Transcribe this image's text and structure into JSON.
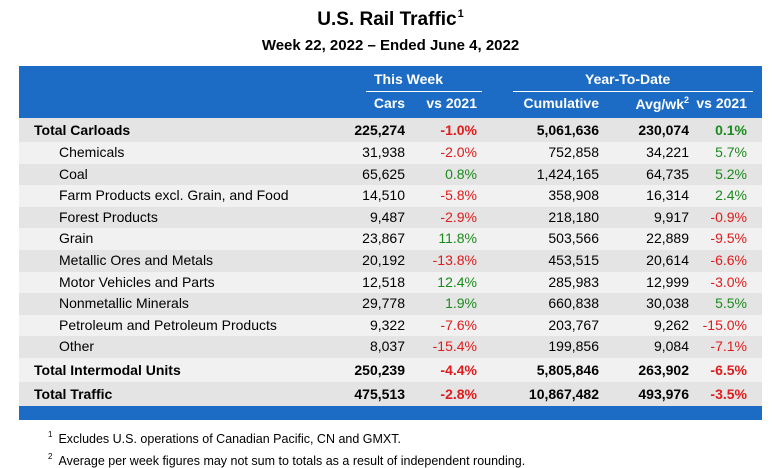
{
  "title": "U.S. Rail Traffic",
  "title_sup": "1",
  "subtitle": "Week 22, 2022 – Ended June 4, 2022",
  "header": {
    "this_week": "This Week",
    "ytd": "Year-To-Date",
    "cars": "Cars",
    "vs2021": "vs 2021",
    "cumulative": "Cumulative",
    "avgwk": "Avg/wk",
    "avgwk_sup": "2",
    "vs2021_ytd": "vs 2021"
  },
  "rows": [
    {
      "label": "Total Carloads",
      "cars": "225,274",
      "vs": "-1.0%",
      "cum": "5,061,636",
      "avg": "230,074",
      "vsy": "0.1%"
    },
    {
      "label": "Chemicals",
      "cars": "31,938",
      "vs": "-2.0%",
      "cum": "752,858",
      "avg": "34,221",
      "vsy": "5.7%"
    },
    {
      "label": "Coal",
      "cars": "65,625",
      "vs": "0.8%",
      "cum": "1,424,165",
      "avg": "64,735",
      "vsy": "5.2%"
    },
    {
      "label": "Farm Products excl. Grain, and Food",
      "cars": "14,510",
      "vs": "-5.8%",
      "cum": "358,908",
      "avg": "16,314",
      "vsy": "2.4%"
    },
    {
      "label": "Forest Products",
      "cars": "9,487",
      "vs": "-2.9%",
      "cum": "218,180",
      "avg": "9,917",
      "vsy": "-0.9%"
    },
    {
      "label": "Grain",
      "cars": "23,867",
      "vs": "11.8%",
      "cum": "503,566",
      "avg": "22,889",
      "vsy": "-9.5%"
    },
    {
      "label": "Metallic Ores and Metals",
      "cars": "20,192",
      "vs": "-13.8%",
      "cum": "453,515",
      "avg": "20,614",
      "vsy": "-6.6%"
    },
    {
      "label": "Motor Vehicles and Parts",
      "cars": "12,518",
      "vs": "12.4%",
      "cum": "285,983",
      "avg": "12,999",
      "vsy": "-3.0%"
    },
    {
      "label": "Nonmetallic Minerals",
      "cars": "29,778",
      "vs": "1.9%",
      "cum": "660,838",
      "avg": "30,038",
      "vsy": "5.5%"
    },
    {
      "label": "Petroleum and Petroleum Products",
      "cars": "9,322",
      "vs": "-7.6%",
      "cum": "203,767",
      "avg": "9,262",
      "vsy": "-15.0%"
    },
    {
      "label": "Other",
      "cars": "8,037",
      "vs": "-15.4%",
      "cum": "199,856",
      "avg": "9,084",
      "vsy": "-7.1%"
    },
    {
      "label": "Total Intermodal Units",
      "cars": "250,239",
      "vs": "-4.4%",
      "cum": "5,805,846",
      "avg": "263,902",
      "vsy": "-6.5%"
    },
    {
      "label": "Total Traffic",
      "cars": "475,513",
      "vs": "-2.8%",
      "cum": "10,867,482",
      "avg": "493,976",
      "vsy": "-3.5%"
    }
  ],
  "footnotes": [
    {
      "num": "1",
      "text": "Excludes U.S. operations of Canadian Pacific, CN and GMXT."
    },
    {
      "num": "2",
      "text": "Average per week figures may not sum to totals as a result of independent rounding."
    }
  ],
  "colors": {
    "header_bg": "#1c6bc4",
    "negative": "#e01b1b",
    "positive": "#1a8a1a"
  }
}
